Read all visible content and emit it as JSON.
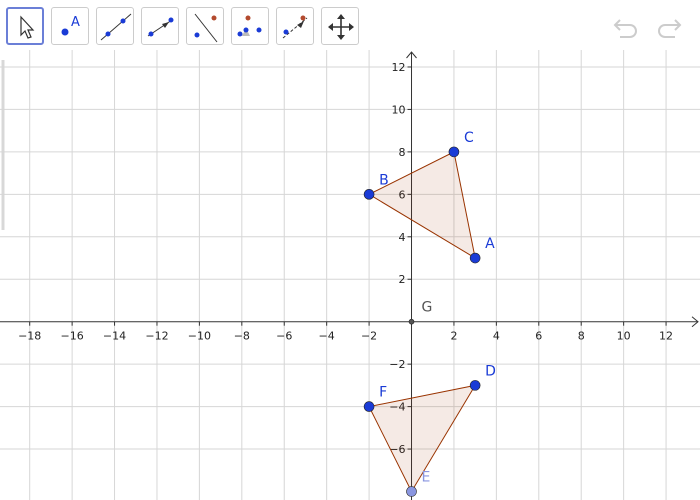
{
  "toolbar": {
    "point_tool_letter": "A"
  },
  "graphics": {
    "xlim": [
      -19.4,
      13.6
    ],
    "ylim": [
      -8.4,
      12.8
    ],
    "xticks": [
      {
        "value": -18,
        "label": "−18"
      },
      {
        "value": -16,
        "label": "−16"
      },
      {
        "value": -14,
        "label": "−14"
      },
      {
        "value": -12,
        "label": "−12"
      },
      {
        "value": -10,
        "label": "−10"
      },
      {
        "value": -8,
        "label": "−8"
      },
      {
        "value": -6,
        "label": "−6"
      },
      {
        "value": -4,
        "label": "−4"
      },
      {
        "value": -2,
        "label": "−2"
      },
      2,
      4,
      6,
      8,
      10,
      12
    ],
    "yticks": [
      {
        "value": -6,
        "label": "−6"
      },
      {
        "value": -4,
        "label": "−4"
      },
      {
        "value": -2,
        "label": "−2"
      },
      2,
      4,
      6,
      8,
      10,
      12
    ],
    "triangles": [
      [
        {
          "label": "A",
          "x": 3,
          "y": 3,
          "color": "#1a3bd6"
        },
        {
          "label": "B",
          "x": -2,
          "y": 6,
          "color": "#1a3bd6"
        },
        {
          "label": "C",
          "x": 2,
          "y": 8,
          "color": "#1a3bd6"
        }
      ],
      [
        {
          "label": "D",
          "x": 3,
          "y": -3,
          "color": "#1a3bd6"
        },
        {
          "label": "E",
          "x": 0,
          "y": -8,
          "color": "#8a96e0"
        },
        {
          "label": "F",
          "x": -2,
          "y": -4,
          "color": "#1a3bd6"
        }
      ]
    ],
    "origin_point": {
      "label": "G",
      "x": 0,
      "y": 0,
      "color": "#555555"
    }
  }
}
